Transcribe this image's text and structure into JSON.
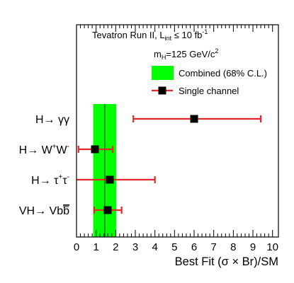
{
  "chart_data": {
    "type": "scatter",
    "header": {
      "run": "Tevatron Run II, L",
      "lumi_sub": "int",
      "lumi_rest": " ≤ 10 fb",
      "lumi_sup": "-1",
      "mass_pre": "m",
      "mass_sub": "H",
      "mass_rest": "=125 GeV/c",
      "mass_sup": "2"
    },
    "legend": {
      "combined": "Combined (68% C.L.)",
      "single": "Single channel",
      "placement": "top-right"
    },
    "xlabel": "Best Fit (σ × Br)/SM",
    "xlim": [
      0,
      10.3
    ],
    "xticks": [
      "0",
      "1",
      "2",
      "3",
      "4",
      "5",
      "6",
      "7",
      "8",
      "9",
      "10"
    ],
    "combined": {
      "value": 1.44,
      "low": 0.85,
      "high": 2.03,
      "color": "#00ff00"
    },
    "channels": [
      {
        "label": {
          "main": "H→ γγ",
          "sup1": "",
          "mid": "",
          "sup2": "",
          "tail": ""
        },
        "value": 6.0,
        "low": 2.9,
        "high": 9.4,
        "clipped_low": false
      },
      {
        "label": {
          "main": "H→ W",
          "sup1": "+",
          "mid": "W",
          "sup2": "-",
          "tail": ""
        },
        "value": 0.94,
        "low": 0.1,
        "high": 1.85,
        "clipped_low": false
      },
      {
        "label": {
          "main": "H→ τ",
          "sup1": "+",
          "mid": "τ",
          "sup2": "-",
          "tail": ""
        },
        "value": 1.7,
        "low": 0.0,
        "high": 4.0,
        "clipped_low": true
      },
      {
        "label": {
          "main": "VH→ Vb",
          "sup1": "",
          "mid": "",
          "sup2": "",
          "tail": "b"
        },
        "value": 1.59,
        "low": 0.9,
        "high": 2.3,
        "clipped_low": false
      }
    ],
    "colors": {
      "error_bar": "#e4262b",
      "marker": "#000000"
    },
    "grid": false
  }
}
